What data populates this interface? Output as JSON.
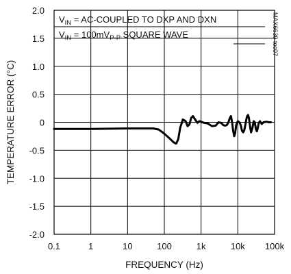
{
  "chart_data": {
    "type": "line",
    "title": "",
    "xlabel": "FREQUENCY (Hz)",
    "ylabel": "TEMPERATURE ERROR (°C)",
    "x_scale": "log",
    "xlim": [
      0.1,
      100000
    ],
    "ylim": [
      -2.0,
      2.0
    ],
    "x_ticks": [
      0.1,
      1,
      10,
      100,
      1000,
      10000,
      100000
    ],
    "x_tick_labels": [
      "0.1",
      "1",
      "10",
      "100",
      "1k",
      "10k",
      "100k"
    ],
    "y_ticks": [
      2.0,
      1.5,
      1.0,
      0.5,
      0,
      -0.5,
      -1.0,
      -1.5,
      -2.0
    ],
    "y_tick_labels": [
      "2.0",
      "1.5",
      "1.0",
      "0.5",
      "0",
      "-0.5",
      "-1.0",
      "-1.5",
      "-2.0"
    ],
    "grid": true,
    "annotations": {
      "line1": {
        "v": "V",
        "sub": "IN",
        "text": " = AC-COUPLED TO DXP AND DXN"
      },
      "line2": {
        "v": "V",
        "sub": "IN",
        "value": " = 100mV",
        "unit_sub": "P-P",
        "text": " SQUARE WAVE"
      }
    },
    "side_label": "MAX6639 toc07",
    "series": [
      {
        "color": "#000000",
        "x": [
          0.1,
          1,
          10,
          50,
          70,
          90,
          120,
          150,
          180,
          210,
          240,
          270,
          320,
          380,
          430,
          480,
          540,
          600,
          700,
          800,
          900,
          1000,
          1200,
          1500,
          2000,
          2500,
          3000,
          3500,
          4000,
          4500,
          5000,
          5500,
          6000,
          6500,
          7000,
          7500,
          8000,
          8500,
          9000,
          10000,
          11000,
          12000,
          13000,
          14000,
          15000,
          16000,
          17000,
          18000,
          19000,
          20000,
          21000,
          22000,
          23000,
          25000,
          27000,
          29000,
          31000,
          33000,
          35000,
          37000,
          40000,
          45000,
          50000,
          60000,
          70000,
          80000
        ],
        "y": [
          -0.12,
          -0.12,
          -0.11,
          -0.11,
          -0.13,
          -0.18,
          -0.25,
          -0.31,
          -0.36,
          -0.38,
          -0.3,
          -0.1,
          0.05,
          0.02,
          -0.07,
          -0.04,
          0.08,
          0.11,
          0.04,
          -0.01,
          0.02,
          0.01,
          -0.01,
          -0.02,
          -0.07,
          -0.06,
          0.0,
          -0.01,
          -0.05,
          -0.06,
          -0.05,
          -0.01,
          0.07,
          0.11,
          0.0,
          -0.16,
          -0.25,
          -0.19,
          -0.05,
          0.02,
          0.0,
          -0.05,
          -0.15,
          -0.18,
          -0.14,
          -0.05,
          0.05,
          0.11,
          0.13,
          0.08,
          -0.02,
          -0.11,
          -0.18,
          -0.1,
          0.02,
          0.0,
          -0.12,
          -0.16,
          -0.1,
          -0.02,
          0.02,
          -0.03,
          0.0,
          0.01,
          0.0,
          0.0
        ]
      }
    ]
  }
}
